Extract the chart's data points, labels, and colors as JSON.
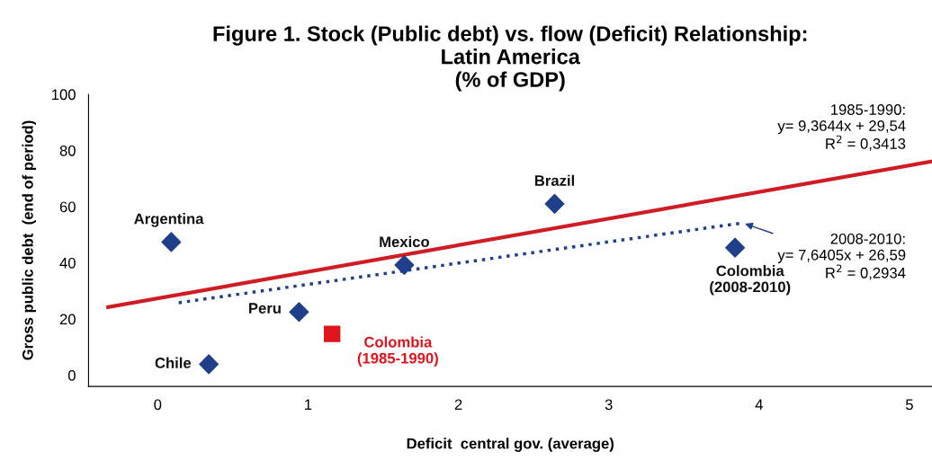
{
  "chart_data": {
    "type": "scatter",
    "title": "Figure 1. Stock (Public debt) vs. flow (Deficit) Relationship:\nLatin America\n(% of GDP)",
    "xlabel": "Deficit  central gov. (average)",
    "ylabel": "Gross public debt  (end of period)",
    "xlim": [
      -0.46,
      5.15
    ],
    "xticks": [
      0,
      1,
      2,
      3,
      4,
      5
    ],
    "ylim": [
      -4,
      100
    ],
    "yticks": [
      0,
      20,
      40,
      60,
      80,
      100
    ],
    "grid": false,
    "legend": false,
    "series": [
      {
        "name": "Argentina",
        "color": "#1f3f8a",
        "marker": "diamond",
        "x": [
          0.09
        ],
        "values": [
          47.4
        ]
      },
      {
        "name": "Chile",
        "color": "#1f3f8a",
        "marker": "diamond",
        "x": [
          0.34
        ],
        "values": [
          3.9
        ]
      },
      {
        "name": "Peru",
        "color": "#1f3f8a",
        "marker": "diamond",
        "x": [
          0.94
        ],
        "values": [
          22.5
        ]
      },
      {
        "name": "Mexico",
        "color": "#1f3f8a",
        "marker": "diamond",
        "x": [
          1.64
        ],
        "values": [
          39.2
        ]
      },
      {
        "name": "Brazil",
        "color": "#1f3f8a",
        "marker": "diamond",
        "x": [
          2.64
        ],
        "values": [
          61
        ]
      },
      {
        "name": "Colombia\n(2008-2010)",
        "color": "#1f3f8a",
        "marker": "diamond",
        "x": [
          3.84
        ],
        "values": [
          45.4
        ]
      },
      {
        "name": "Colombia\n(1985-1990)",
        "color": "#e0141c",
        "marker": "square",
        "x": [
          1.16
        ],
        "values": [
          14.7
        ]
      },
      {
        "type": "line",
        "color": "#d01c24",
        "line_style": "solid",
        "marker": "none",
        "x": [
          -0.33,
          5.14
        ],
        "values": [
          24.2,
          76
        ]
      },
      {
        "type": "line",
        "color": "#1f3f8a",
        "line_style": "dotted",
        "marker": "none",
        "x": [
          0.14,
          3.89
        ],
        "values": [
          25.8,
          54.2
        ]
      }
    ],
    "annotations": [
      "1985-1990:\ny= 9,3644x + 29,54\nR$^{2}$ = 0,3413",
      {
        "text": "2008-2010:\ny= 7,6405x + 26,59\nR$^{2}$ = 0,2934",
        "x": 3.89,
        "y": 54.2
      }
    ]
  }
}
